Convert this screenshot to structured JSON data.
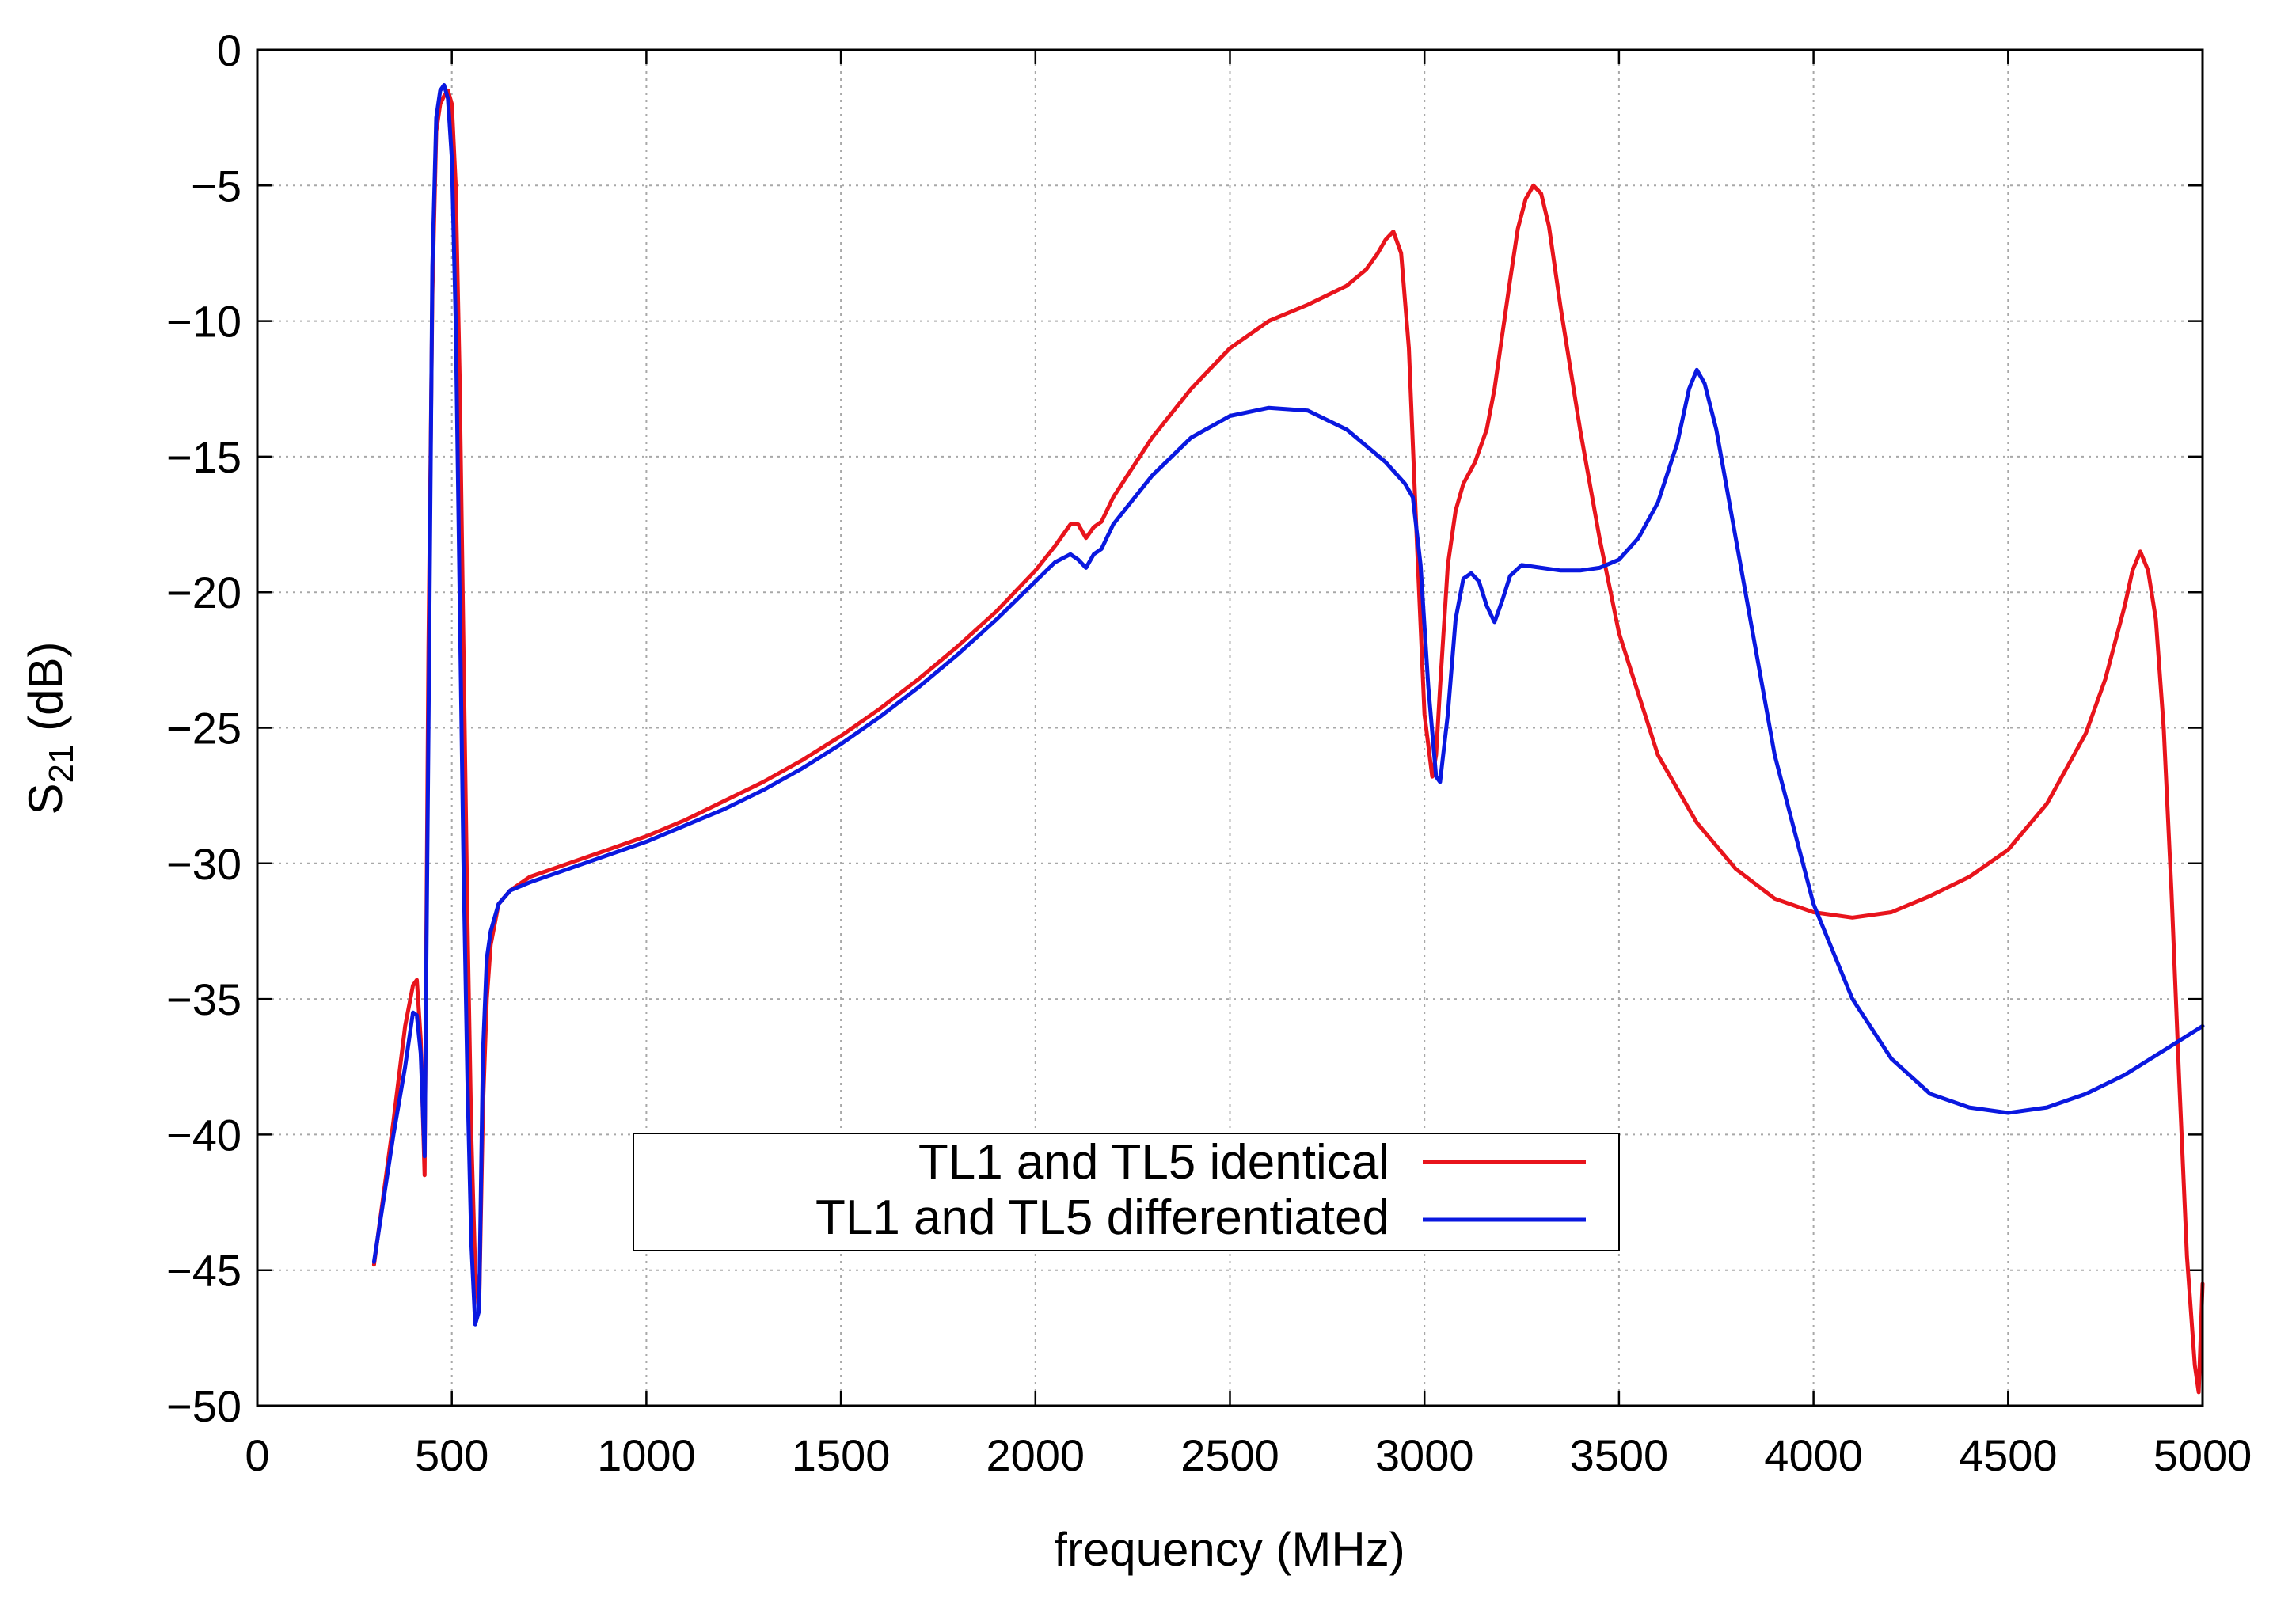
{
  "chart_data": {
    "type": "line",
    "title": "",
    "xlabel": "frequency  (MHz)",
    "ylabel_main": "S",
    "ylabel_sub": "21",
    "ylabel_unit": " (dB)",
    "xlim": [
      0,
      5000
    ],
    "ylim": [
      -50,
      0
    ],
    "xticks": [
      0,
      500,
      1000,
      1500,
      2000,
      2500,
      3000,
      3500,
      4000,
      4500,
      5000
    ],
    "yticks": [
      0,
      -5,
      -10,
      -15,
      -20,
      -25,
      -30,
      -35,
      -40,
      -45,
      -50
    ],
    "xtick_labels": [
      "0",
      "500",
      "1000",
      "1500",
      "2000",
      "2500",
      "3000",
      "3500",
      "4000",
      "4500",
      "5000"
    ],
    "ytick_labels": [
      "0",
      "−5",
      "−10",
      "−15",
      "−20",
      "−25",
      "−30",
      "−35",
      "−40",
      "−45",
      "−50"
    ],
    "grid": true,
    "legend_position": "bottom-center",
    "series": [
      {
        "name": "TL1 and TL5 identical",
        "color": "#e8141c",
        "x": [
          300,
          350,
          380,
          400,
          410,
          420,
          430,
          440,
          450,
          460,
          470,
          480,
          490,
          500,
          510,
          520,
          530,
          540,
          550,
          560,
          570,
          580,
          590,
          600,
          620,
          650,
          700,
          800,
          900,
          1000,
          1100,
          1200,
          1300,
          1400,
          1500,
          1600,
          1700,
          1800,
          1900,
          2000,
          2050,
          2090,
          2110,
          2130,
          2150,
          2170,
          2200,
          2300,
          2400,
          2500,
          2600,
          2700,
          2800,
          2850,
          2880,
          2900,
          2920,
          2940,
          2960,
          2980,
          3000,
          3020,
          3030,
          3040,
          3060,
          3080,
          3100,
          3130,
          3160,
          3180,
          3200,
          3220,
          3240,
          3260,
          3280,
          3300,
          3320,
          3350,
          3400,
          3450,
          3500,
          3600,
          3700,
          3800,
          3900,
          4000,
          4100,
          4200,
          4300,
          4400,
          4500,
          4600,
          4700,
          4750,
          4800,
          4820,
          4840,
          4860,
          4880,
          4900,
          4920,
          4940,
          4960,
          4980,
          4990,
          5000
        ],
        "y": [
          -44.8,
          -39.5,
          -36.0,
          -34.5,
          -34.3,
          -36.5,
          -41.5,
          -22.0,
          -9.0,
          -3.0,
          -2.0,
          -1.7,
          -1.5,
          -2.0,
          -5.0,
          -12.0,
          -22.0,
          -32.0,
          -40.0,
          -45.0,
          -46.5,
          -39.0,
          -35.0,
          -33.0,
          -31.5,
          -31.0,
          -30.5,
          -30.0,
          -29.5,
          -29.0,
          -28.4,
          -27.7,
          -27.0,
          -26.2,
          -25.3,
          -24.3,
          -23.2,
          -22.0,
          -20.7,
          -19.2,
          -18.3,
          -17.5,
          -17.5,
          -18.0,
          -17.6,
          -17.4,
          -16.5,
          -14.3,
          -12.5,
          -11.0,
          -10.0,
          -9.4,
          -8.7,
          -8.1,
          -7.5,
          -7.0,
          -6.7,
          -7.5,
          -11.0,
          -18.0,
          -24.5,
          -26.8,
          -26.0,
          -23.5,
          -19.0,
          -17.0,
          -16.0,
          -15.2,
          -14.0,
          -12.5,
          -10.5,
          -8.5,
          -6.6,
          -5.5,
          -5.0,
          -5.3,
          -6.5,
          -9.5,
          -14.0,
          -18.0,
          -21.5,
          -26.0,
          -28.5,
          -30.2,
          -31.3,
          -31.8,
          -32.0,
          -31.8,
          -31.2,
          -30.5,
          -29.5,
          -27.8,
          -25.2,
          -23.2,
          -20.5,
          -19.2,
          -18.5,
          -19.2,
          -21.0,
          -25.0,
          -31.0,
          -38.0,
          -44.5,
          -48.5,
          -49.5,
          -45.5
        ]
      },
      {
        "name": "TL1 and TL5 differentiated",
        "color": "#0a18e0",
        "x": [
          300,
          350,
          380,
          400,
          410,
          420,
          430,
          440,
          450,
          460,
          470,
          480,
          490,
          500,
          510,
          520,
          530,
          540,
          550,
          560,
          570,
          580,
          590,
          600,
          620,
          650,
          700,
          800,
          900,
          1000,
          1100,
          1200,
          1300,
          1400,
          1500,
          1600,
          1700,
          1800,
          1900,
          2000,
          2050,
          2090,
          2110,
          2130,
          2150,
          2170,
          2200,
          2300,
          2400,
          2500,
          2600,
          2700,
          2800,
          2900,
          2950,
          2970,
          2990,
          3010,
          3030,
          3040,
          3060,
          3080,
          3100,
          3120,
          3140,
          3160,
          3180,
          3200,
          3220,
          3250,
          3300,
          3350,
          3400,
          3450,
          3500,
          3550,
          3600,
          3650,
          3680,
          3700,
          3720,
          3750,
          3800,
          3900,
          4000,
          4100,
          4200,
          4300,
          4400,
          4500,
          4600,
          4700,
          4800,
          4900,
          5000
        ],
        "y": [
          -44.7,
          -40.0,
          -37.5,
          -35.5,
          -35.6,
          -37.0,
          -40.8,
          -25.0,
          -8.0,
          -2.5,
          -1.5,
          -1.3,
          -1.8,
          -4.0,
          -10.0,
          -20.0,
          -30.0,
          -38.0,
          -44.0,
          -47.0,
          -46.5,
          -37.0,
          -33.5,
          -32.5,
          -31.5,
          -31.0,
          -30.7,
          -30.2,
          -29.7,
          -29.2,
          -28.6,
          -28.0,
          -27.3,
          -26.5,
          -25.6,
          -24.6,
          -23.5,
          -22.3,
          -21.0,
          -19.6,
          -18.9,
          -18.6,
          -18.8,
          -19.1,
          -18.6,
          -18.4,
          -17.5,
          -15.7,
          -14.3,
          -13.5,
          -13.2,
          -13.3,
          -14.0,
          -15.2,
          -16.0,
          -16.5,
          -19.0,
          -23.5,
          -26.8,
          -27.0,
          -24.5,
          -21.0,
          -19.5,
          -19.3,
          -19.6,
          -20.5,
          -21.1,
          -20.3,
          -19.4,
          -19.0,
          -19.1,
          -19.2,
          -19.2,
          -19.1,
          -18.8,
          -18.0,
          -16.7,
          -14.5,
          -12.5,
          -11.8,
          -12.3,
          -14.0,
          -18.0,
          -26.0,
          -31.5,
          -35.0,
          -37.2,
          -38.5,
          -39.0,
          -39.2,
          -39.0,
          -38.5,
          -37.8,
          -36.9,
          -36.0
        ]
      }
    ]
  }
}
